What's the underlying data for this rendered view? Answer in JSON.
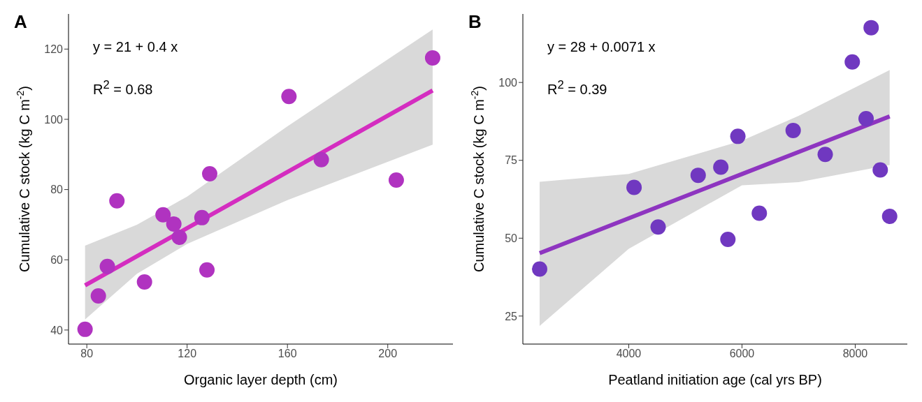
{
  "chart_data": [
    {
      "type": "scatter",
      "title": "A",
      "xlabel": "Organic layer depth (cm)",
      "ylabel": "Cumulative C stock (kg C m$^{-2}$)",
      "annotations": [
        "y = 21 + 0.4 x",
        "R$^{2}$ = 0.68"
      ],
      "xlim": [
        72.7,
        226
      ],
      "xticks": [
        80,
        120,
        160,
        200
      ],
      "ylim": [
        36,
        130
      ],
      "yticks": [
        40,
        60,
        80,
        100,
        120
      ],
      "line_style": "solid",
      "series": [
        {
          "marker": "circle",
          "color": "#b033c0",
          "x": [
            79.3,
            84.6,
            88.2,
            92.0,
            103.0,
            110.4,
            114.7,
            116.9,
            125.9,
            127.9,
            129.0,
            160.6,
            173.5,
            203.4,
            217.9
          ],
          "values": [
            40.2,
            49.7,
            58.1,
            76.8,
            53.7,
            72.8,
            70.2,
            66.4,
            72.0,
            57.1,
            84.5,
            106.5,
            88.5,
            82.7,
            117.5
          ]
        },
        {
          "type": "line",
          "color": "#d42dc0",
          "x": [
            79.3,
            100,
            120,
            160,
            217.9
          ],
          "values": [
            52.7,
            61,
            69,
            85,
            108.2
          ],
          "lower": [
            43,
            56,
            64.5,
            77,
            92.8
          ],
          "upper": [
            64,
            70,
            78,
            98,
            125.6
          ]
        }
      ]
    },
    {
      "type": "scatter",
      "title": "B",
      "xlabel": "Peatland initiation age (cal yrs BP)",
      "ylabel": "Cumulative C stock (kg C m$^{-2}$)",
      "annotations": [
        "y = 28 + 0.0071 x",
        "R$^{2}$ = 0.39"
      ],
      "xlim": [
        2130,
        8920
      ],
      "xticks": [
        4000,
        6000,
        8000
      ],
      "ylim": [
        16,
        122
      ],
      "yticks": [
        25,
        50,
        75,
        100
      ],
      "line_style": "solid",
      "series": [
        {
          "marker": "circle",
          "color": "#7038c0",
          "x": [
            2426,
            4094,
            4519,
            5226,
            5626,
            5751,
            5927,
            6306,
            6904,
            7470,
            7948,
            8192,
            8281,
            8442,
            8608
          ],
          "values": [
            40.1,
            66.3,
            53.6,
            70.2,
            72.8,
            49.6,
            82.7,
            58.0,
            84.6,
            76.9,
            106.6,
            88.4,
            117.6,
            71.9,
            57.0
          ]
        },
        {
          "type": "line",
          "color": "#8e35c0",
          "x": [
            2426,
            4000,
            6000,
            7000,
            8608
          ],
          "values": [
            45.2,
            56.4,
            70.6,
            77.7,
            89.1
          ],
          "lower": [
            21.8,
            46.6,
            67,
            68,
            73.5
          ],
          "upper": [
            68.1,
            70.6,
            81.3,
            89.3,
            104
          ]
        }
      ]
    }
  ]
}
